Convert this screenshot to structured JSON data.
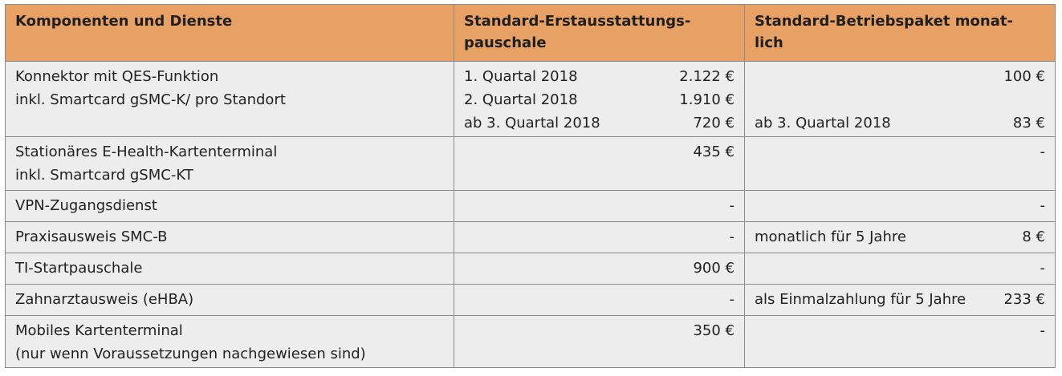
{
  "headers": {
    "col1": "Komponenten und Dienste",
    "col2_line1": "Standard-Erstausstattungs-",
    "col2_line2": "pauschale",
    "col3_line1": "Standard-Betriebspaket monat-",
    "col3_line2": "lich"
  },
  "rows": [
    {
      "comp": [
        "Konnektor mit QES-Funktion",
        "inkl. Smartcard gSMC-K/ pro Standort"
      ],
      "init": [
        {
          "label": "1. Quartal 2018",
          "value": "2.122 €"
        },
        {
          "label": "2. Quartal 2018",
          "value": "1.910 €"
        },
        {
          "label": "ab 3. Quartal 2018",
          "value": "720 €"
        }
      ],
      "oper": [
        {
          "label": "",
          "value": "100 €"
        },
        {
          "label": "",
          "value": ""
        },
        {
          "label": "ab 3. Quartal 2018",
          "value": "83 €"
        }
      ]
    },
    {
      "comp": [
        "Stationäres E-Health-Kartenterminal",
        "inkl. Smartcard gSMC-KT"
      ],
      "init": "435 €",
      "oper": "-"
    },
    {
      "comp": [
        "VPN-Zugangsdienst"
      ],
      "init": "-",
      "oper": "-"
    },
    {
      "comp": [
        "Praxisausweis SMC-B"
      ],
      "init": "-",
      "oper_label": "monatlich für 5 Jahre",
      "oper": "8 €"
    },
    {
      "comp": [
        "TI-Startpauschale"
      ],
      "init": "900 €",
      "oper": "-"
    },
    {
      "comp": [
        "Zahnarztausweis (eHBA)"
      ],
      "init": "-",
      "oper_label": "als Einmalzahlung für 5 Jahre",
      "oper": "233 €"
    },
    {
      "comp": [
        "Mobiles Kartenterminal",
        "(nur wenn Voraussetzungen nachgewiesen sind)"
      ],
      "init": "350 €",
      "oper": "-"
    }
  ],
  "colors": {
    "header_bg": "#e8a165",
    "cell_bg": "#ededed",
    "border": "#8a8a8a"
  }
}
